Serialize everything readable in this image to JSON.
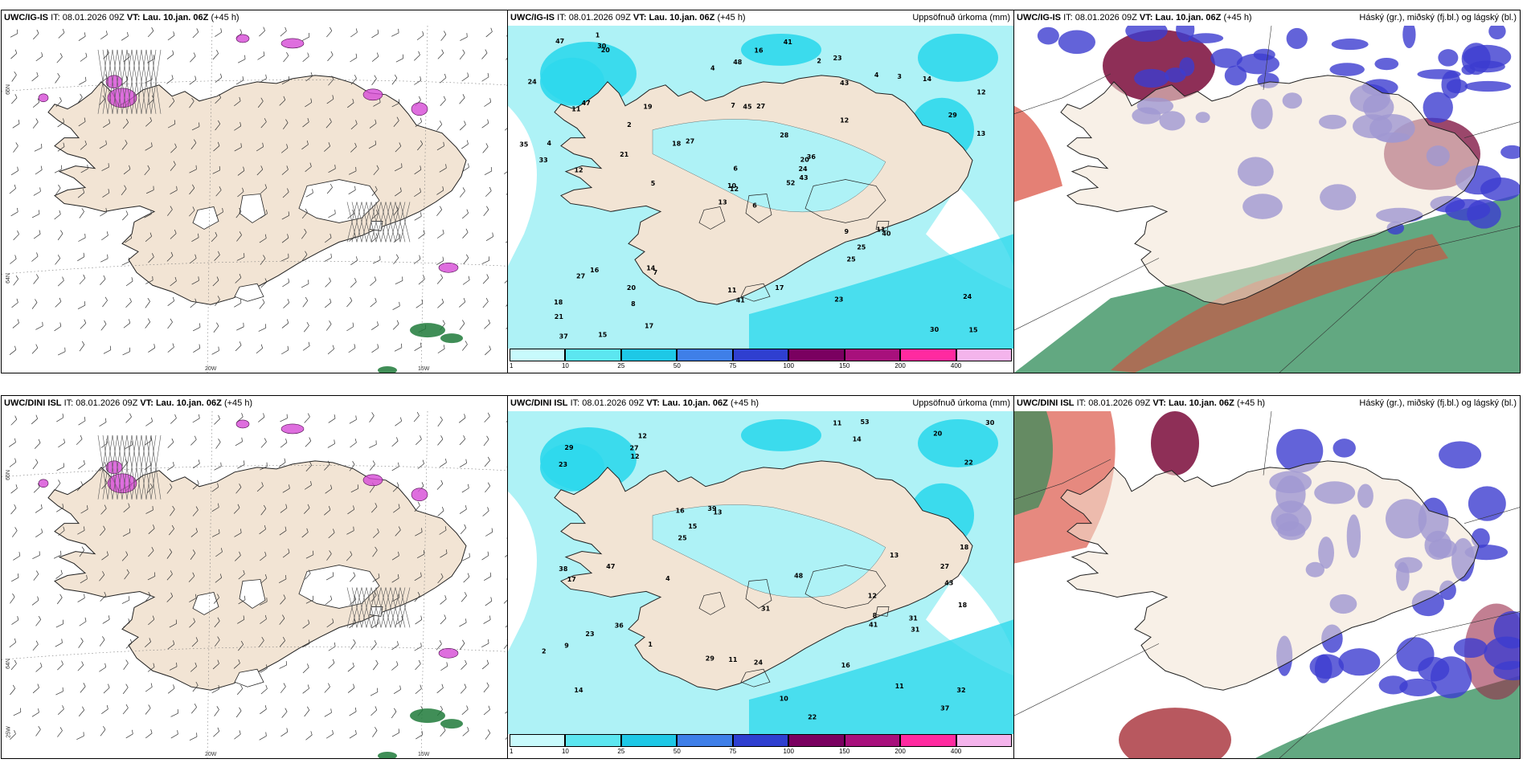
{
  "colors": {
    "land": "#f2e4d4",
    "sea": "#ffffff",
    "precip_light": "#aef2f6",
    "precip_mid": "#2fd8ec",
    "snow_hatch": "#666666",
    "convective": "#d64ad6",
    "high_cloud": "#2e8b57",
    "mid_cloud": "#3c3ccf",
    "low_cloud": "#d94a3a"
  },
  "panels": [
    {
      "model": "UWC/IG-IS",
      "it_label": "IT:",
      "it": "08.01.2026 09Z",
      "vt_label": "VT:",
      "vt": "Lau. 10.jan. 06Z",
      "lead": "(+45 h)",
      "right_title": "",
      "icon": "wind-barb-map-icon"
    },
    {
      "model": "UWC/IG-IS",
      "it_label": "IT:",
      "it": "08.01.2026 09Z",
      "vt_label": "VT:",
      "vt": "Lau. 10.jan. 06Z",
      "lead": "(+45 h)",
      "right_title": "Uppsöfnuð úrkoma (mm)",
      "icon": "precip-map-icon"
    },
    {
      "model": "UWC/IG-IS",
      "it_label": "IT:",
      "it": "08.01.2026 09Z",
      "vt_label": "VT:",
      "vt": "Lau. 10.jan. 06Z",
      "lead": "(+45 h)",
      "right_title": "Háský (gr.), miðský (fj.bl.) og lágský (bl.)",
      "icon": "cloud-map-icon"
    },
    {
      "model": "UWC/DINI ISL",
      "it_label": "IT:",
      "it": "08.01.2026 09Z",
      "vt_label": "VT:",
      "vt": "Lau. 10.jan. 06Z",
      "lead": "(+45 h)",
      "right_title": "",
      "icon": "wind-barb-map-icon"
    },
    {
      "model": "UWC/DINI ISL",
      "it_label": "IT:",
      "it": "08.01.2026 09Z",
      "vt_label": "VT:",
      "vt": "Lau. 10.jan. 06Z",
      "lead": "(+45 h)",
      "right_title": "Uppsöfnuð úrkoma (mm)",
      "icon": "precip-map-icon"
    },
    {
      "model": "UWC/DINI ISL",
      "it_label": "IT:",
      "it": "08.01.2026 09Z",
      "vt_label": "VT:",
      "vt": "Lau. 10.jan. 06Z",
      "lead": "(+45 h)",
      "right_title": "Háský (gr.), miðský (fj.bl.) og lágský (bl.)",
      "icon": "cloud-map-icon"
    }
  ],
  "axis_labels": {
    "lon_20": "20W",
    "lon_15": "15W",
    "lat_66": "66N",
    "lat_64": "64N",
    "lon_25": "25W"
  },
  "colorbar": {
    "ticks": [
      "1",
      "10",
      "25",
      "50",
      "75",
      "100",
      "150",
      "200",
      "400"
    ],
    "colors": [
      "#c8fafc",
      "#5ce6f0",
      "#1ec8e6",
      "#3f7fe8",
      "#2f3fd0",
      "#7a0060",
      "#a8107c",
      "#ff2aa0",
      "#f4b4ec"
    ]
  },
  "precip_values": {
    "igis": [
      "6",
      "11",
      "12",
      "18",
      "20",
      "7",
      "23",
      "27",
      "43",
      "52",
      "20",
      "15",
      "12",
      "12",
      "13",
      "12",
      "15",
      "7",
      "28",
      "16",
      "27",
      "21",
      "8",
      "45",
      "36",
      "40",
      "47",
      "48",
      "33",
      "9",
      "13",
      "10",
      "11",
      "6",
      "19",
      "4",
      "14",
      "30",
      "24",
      "11",
      "41",
      "18",
      "21",
      "25",
      "17",
      "35",
      "24",
      "37",
      "41",
      "43",
      "27",
      "29",
      "24",
      "25",
      "23",
      "20",
      "30",
      "47",
      "17",
      "14",
      "16",
      "5",
      "4",
      "2",
      "3",
      "1",
      "2",
      "4"
    ],
    "dini": [
      "12",
      "43",
      "14",
      "12",
      "13",
      "11",
      "9",
      "14",
      "16",
      "22",
      "23",
      "38",
      "29",
      "32",
      "29",
      "18",
      "31",
      "48",
      "39",
      "36",
      "30",
      "20",
      "25",
      "18",
      "11",
      "27",
      "8",
      "17",
      "12",
      "13",
      "10",
      "16",
      "15",
      "4",
      "27",
      "31",
      "41",
      "47",
      "24",
      "23",
      "22",
      "53",
      "37",
      "11",
      "31",
      "1",
      "2"
    ]
  }
}
